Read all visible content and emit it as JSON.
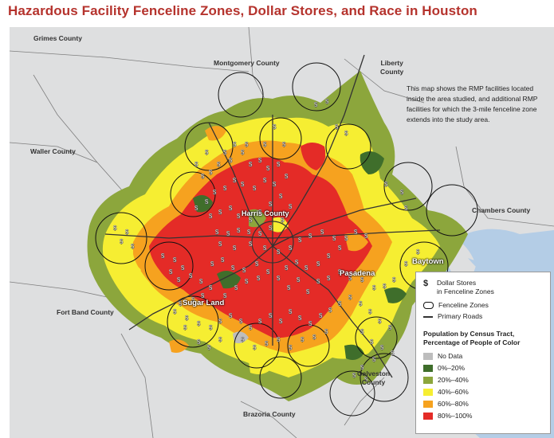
{
  "title": "Hazardous Facility Fenceline Zones, Dollar Stores, and Race in Houston",
  "counties": {
    "grimes": "Grimes County",
    "montgomery": "Montgomery County",
    "liberty_1": "Liberty",
    "liberty_2": "County",
    "waller": "Waller County",
    "chambers": "Chambers County",
    "fort_band": "Fort Band County",
    "brazoria": "Brazoria County",
    "galveston_1": "Galveston",
    "galveston_2": "County",
    "harris": "Harris County"
  },
  "cities": {
    "baytown": "Baytown",
    "pasadena": "Pasadena",
    "sugar_land": "Sugar Land"
  },
  "note": "This map shows the RMP facilities located inside the area studied, and additional RMP facilities for which the 3-mile fenceline zone extends into the study area.",
  "legend": {
    "dollar_symbol": "$",
    "dollar_line1": "Dollar Stores",
    "dollar_line2": "in Fenceline Zones",
    "fenceline": "Fenceline Zones",
    "roads": "Primary Roads",
    "pop_title_1": "Population by Census Tract,",
    "pop_title_2": "Percentage of People of Color",
    "categories": [
      {
        "label": "No Data",
        "color": "#bdbdbd"
      },
      {
        "label": "0%–20%",
        "color": "#3f6e2b"
      },
      {
        "label": "20%–40%",
        "color": "#8ca63c"
      },
      {
        "label": "40%–60%",
        "color": "#f6ee32"
      },
      {
        "label": "60%–80%",
        "color": "#f6a21f"
      },
      {
        "label": "80%–100%",
        "color": "#e42b27"
      }
    ]
  },
  "colors": {
    "title": "#b5332d",
    "land": "#dedfe0",
    "water": "#b4cde6"
  }
}
